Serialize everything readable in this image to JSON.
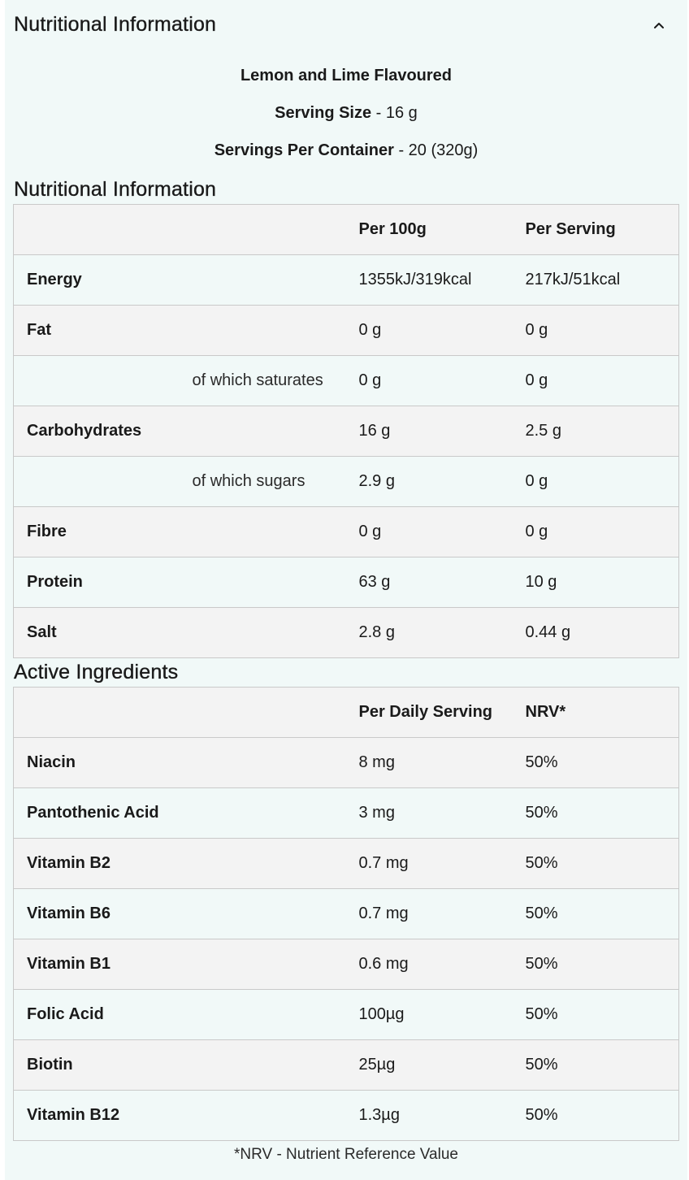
{
  "header": {
    "title": "Nutritional Information",
    "collapse_icon": "chevron-up-icon"
  },
  "product": {
    "flavour": "Lemon and Lime Flavoured",
    "serving_size_label": "Serving Size",
    "serving_size_value": " - 16 g",
    "servings_label": "Servings Per Container",
    "servings_value": " - 20 (320g)"
  },
  "nutrition": {
    "title": "Nutritional Information",
    "col_per100": "Per 100g",
    "col_perserving": "Per Serving",
    "rows": [
      {
        "name": "Energy",
        "sub": "",
        "per100": "1355kJ/319kcal",
        "perserving": "217kJ/51kcal"
      },
      {
        "name": "Fat",
        "sub": "",
        "per100": "0 g",
        "perserving": "0 g"
      },
      {
        "name": "",
        "sub": "of which saturates",
        "per100": "0 g",
        "perserving": "0 g"
      },
      {
        "name": "Carbohydrates",
        "sub": "",
        "per100": "16 g",
        "perserving": "2.5 g"
      },
      {
        "name": "",
        "sub": "of which sugars",
        "per100": "2.9 g",
        "perserving": "0 g"
      },
      {
        "name": "Fibre",
        "sub": "",
        "per100": "0 g",
        "perserving": "0 g"
      },
      {
        "name": "Protein",
        "sub": "",
        "per100": "63 g",
        "perserving": "10 g"
      },
      {
        "name": "Salt",
        "sub": "",
        "per100": "2.8 g",
        "perserving": "0.44 g"
      }
    ]
  },
  "active": {
    "title": "Active Ingredients",
    "col_daily": "Per Daily Serving",
    "col_nrv": "NRV*",
    "rows": [
      {
        "name": "Niacin",
        "daily": "8 mg",
        "nrv": "50%"
      },
      {
        "name": "Pantothenic Acid",
        "daily": "3 mg",
        "nrv": "50%"
      },
      {
        "name": "Vitamin B2",
        "daily": "0.7 mg",
        "nrv": "50%"
      },
      {
        "name": "Vitamin B6",
        "daily": "0.7 mg",
        "nrv": "50%"
      },
      {
        "name": "Vitamin B1",
        "daily": "0.6 mg",
        "nrv": "50%"
      },
      {
        "name": "Folic Acid",
        "daily": "100µg",
        "nrv": "50%"
      },
      {
        "name": "Biotin",
        "daily": "25µg",
        "nrv": "50%"
      },
      {
        "name": "Vitamin B12",
        "daily": "1.3µg",
        "nrv": "50%"
      }
    ]
  },
  "footnote": "*NRV - Nutrient Reference Value",
  "colors": {
    "panel_bg": "#f1f9f8",
    "row_grey": "#f3f3f3",
    "border": "#c9c9c9",
    "text": "#1a1a1a"
  }
}
